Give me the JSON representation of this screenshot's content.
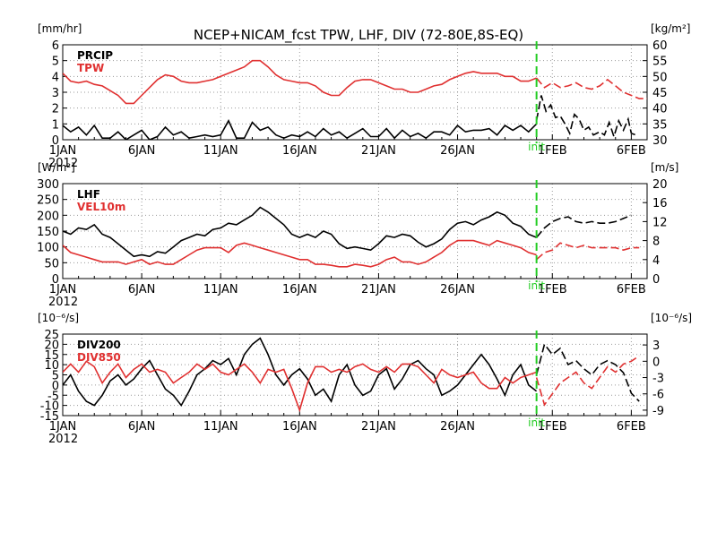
{
  "title": "NCEP+NICAM_fcst TPW, LHF, DIV (72-80E,8S-EQ)",
  "init_label": "init",
  "colors": {
    "black": "#000000",
    "red": "#e03030",
    "init": "#22cc22",
    "grid": "#9a9a9a"
  },
  "x_ticks": [
    "1JAN",
    "6JAN",
    "11JAN",
    "16JAN",
    "21JAN",
    "26JAN",
    "1FEB",
    "6FEB"
  ],
  "x_year": "2012",
  "chart_data": [
    {
      "type": "line",
      "left_unit": "[mm/hr]",
      "right_unit": "[kg/m²]",
      "left_ylim": [
        0,
        6
      ],
      "left_ticks": [
        0,
        1,
        2,
        3,
        4,
        5,
        6
      ],
      "right_ylim": [
        30,
        60
      ],
      "right_ticks": [
        30,
        35,
        40,
        45,
        50,
        55,
        60
      ],
      "x_range": [
        1,
        38
      ],
      "forecast_start": 31,
      "series": [
        {
          "name": "PRCIP",
          "axis": "left",
          "color": "black",
          "x": [
            1,
            1.5,
            2,
            2.5,
            3,
            3.5,
            4,
            4.5,
            5,
            5.5,
            6,
            6.5,
            7,
            7.5,
            8,
            8.5,
            9,
            9.5,
            10,
            10.5,
            11,
            11.5,
            12,
            12.5,
            13,
            13.5,
            14,
            14.5,
            15,
            15.5,
            16,
            16.5,
            17,
            17.5,
            18,
            18.5,
            19,
            19.5,
            20,
            20.5,
            21,
            21.5,
            22,
            22.5,
            23,
            23.5,
            24,
            24.5,
            25,
            25.5,
            26,
            26.5,
            27,
            27.5,
            28,
            28.5,
            29,
            29.5,
            30,
            30.5,
            31
          ],
          "values": [
            0.9,
            0.5,
            0.8,
            0.3,
            0.9,
            0.1,
            0.1,
            0.5,
            0.0,
            0.3,
            0.6,
            0.0,
            0.2,
            0.8,
            0.3,
            0.5,
            0.1,
            0.2,
            0.3,
            0.2,
            0.3,
            1.2,
            0.1,
            0.1,
            1.1,
            0.6,
            0.8,
            0.3,
            0.1,
            0.3,
            0.2,
            0.5,
            0.2,
            0.7,
            0.3,
            0.5,
            0.1,
            0.4,
            0.7,
            0.2,
            0.2,
            0.7,
            0.1,
            0.6,
            0.2,
            0.4,
            0.1,
            0.5,
            0.5,
            0.3,
            0.9,
            0.5,
            0.6,
            0.6,
            0.7,
            0.3,
            0.9,
            0.6,
            0.9,
            0.5,
            1.0
          ]
        },
        {
          "name": "TPW",
          "axis": "right",
          "color": "red",
          "x": [
            1,
            1.5,
            2,
            2.5,
            3,
            3.5,
            4,
            4.5,
            5,
            5.5,
            6,
            6.5,
            7,
            7.5,
            8,
            8.5,
            9,
            9.5,
            10,
            10.5,
            11,
            11.5,
            12,
            12.5,
            13,
            13.5,
            14,
            14.5,
            15,
            15.5,
            16,
            16.5,
            17,
            17.5,
            18,
            18.5,
            19,
            19.5,
            20,
            20.5,
            21,
            21.5,
            22,
            22.5,
            23,
            23.5,
            24,
            24.5,
            25,
            25.5,
            26,
            26.5,
            27,
            27.5,
            28,
            28.5,
            29,
            29.5,
            30,
            30.5,
            31
          ],
          "values": [
            51,
            48.5,
            48,
            48.5,
            47.5,
            47,
            45.5,
            44,
            41.5,
            41.5,
            44,
            46.5,
            49,
            50.5,
            50,
            48.5,
            48,
            48,
            48.5,
            49,
            50,
            51,
            52,
            53,
            55,
            55,
            53,
            50.5,
            49,
            48.5,
            48,
            48,
            47,
            45,
            44,
            44,
            46.5,
            48.5,
            49,
            49,
            48,
            47,
            46,
            46,
            45,
            45,
            46,
            47,
            47.5,
            49,
            50,
            51,
            51.5,
            51,
            51,
            51,
            50,
            50,
            48.5,
            48.5,
            49.5
          ]
        },
        {
          "name": "PRCIP forecast",
          "axis": "left",
          "color": "black",
          "dashed": true,
          "x": [
            31,
            31.3,
            31.6,
            31.9,
            32.2,
            32.5,
            32.8,
            33.1,
            33.4,
            33.7,
            34,
            34.3,
            34.6,
            35,
            35.3,
            35.6,
            35.9,
            36.2,
            36.5,
            36.8,
            37,
            37.3
          ],
          "values": [
            1.2,
            2.8,
            1.8,
            2.2,
            1.4,
            1.5,
            1.0,
            0.4,
            1.6,
            1.3,
            0.6,
            0.8,
            0.3,
            0.5,
            0.3,
            1.1,
            0.2,
            1.2,
            0.6,
            1.3,
            0.4,
            0.3
          ]
        },
        {
          "name": "TPW forecast",
          "axis": "right",
          "color": "red",
          "dashed": true,
          "x": [
            31,
            31.5,
            32,
            32.5,
            33,
            33.5,
            34,
            34.5,
            35,
            35.5,
            36,
            36.5,
            37,
            37.5,
            38
          ],
          "values": [
            49.5,
            46.5,
            48,
            46.5,
            47,
            48,
            46.5,
            46,
            47,
            49,
            47,
            45,
            44,
            43,
            43
          ]
        }
      ]
    },
    {
      "type": "line",
      "left_unit": "[W/m²]",
      "right_unit": "[m/s]",
      "left_ylim": [
        0,
        300
      ],
      "left_ticks": [
        0,
        50,
        100,
        150,
        200,
        250,
        300
      ],
      "right_ylim": [
        0,
        20
      ],
      "right_ticks": [
        0,
        4,
        8,
        12,
        16,
        20
      ],
      "x_range": [
        1,
        38
      ],
      "forecast_start": 31,
      "series": [
        {
          "name": "LHF",
          "axis": "left",
          "color": "black",
          "x": [
            1,
            1.5,
            2,
            2.5,
            3,
            3.5,
            4,
            4.5,
            5,
            5.5,
            6,
            6.5,
            7,
            7.5,
            8,
            8.5,
            9,
            9.5,
            10,
            10.5,
            11,
            11.5,
            12,
            12.5,
            13,
            13.5,
            14,
            14.5,
            15,
            15.5,
            16,
            16.5,
            17,
            17.5,
            18,
            18.5,
            19,
            19.5,
            20,
            20.5,
            21,
            21.5,
            22,
            22.5,
            23,
            23.5,
            24,
            24.5,
            25,
            25.5,
            26,
            26.5,
            27,
            27.5,
            28,
            28.5,
            29,
            29.5,
            30,
            30.5,
            31
          ],
          "values": [
            150,
            140,
            160,
            155,
            170,
            140,
            130,
            110,
            90,
            70,
            75,
            70,
            85,
            80,
            100,
            120,
            130,
            140,
            135,
            155,
            160,
            175,
            170,
            185,
            200,
            225,
            210,
            190,
            170,
            140,
            130,
            140,
            130,
            150,
            140,
            110,
            95,
            100,
            95,
            90,
            110,
            135,
            130,
            140,
            135,
            115,
            100,
            110,
            125,
            155,
            175,
            180,
            170,
            185,
            195,
            210,
            200,
            175,
            165,
            140,
            130
          ]
        },
        {
          "name": "VEL10m",
          "axis": "right",
          "color": "red",
          "x": [
            1,
            1.5,
            2,
            2.5,
            3,
            3.5,
            4,
            4.5,
            5,
            5.5,
            6,
            6.5,
            7,
            7.5,
            8,
            8.5,
            9,
            9.5,
            10,
            10.5,
            11,
            11.5,
            12,
            12.5,
            13,
            13.5,
            14,
            14.5,
            15,
            15.5,
            16,
            16.5,
            17,
            17.5,
            18,
            18.5,
            19,
            19.5,
            20,
            20.5,
            21,
            21.5,
            22,
            22.5,
            23,
            23.5,
            24,
            24.5,
            25,
            25.5,
            26,
            26.5,
            27,
            27.5,
            28,
            28.5,
            29,
            29.5,
            30,
            30.5,
            31
          ],
          "values": [
            7,
            5.5,
            5,
            4.5,
            4,
            3.5,
            3.5,
            3.5,
            3,
            3.5,
            4,
            3,
            3.5,
            3,
            3,
            4,
            5,
            6,
            6.5,
            6.5,
            6.5,
            5.5,
            7,
            7.5,
            7,
            6.5,
            6,
            5.5,
            5,
            4.5,
            4,
            4,
            3,
            3,
            2.8,
            2.5,
            2.5,
            3,
            2.8,
            2.5,
            3,
            4,
            4.5,
            3.5,
            3.5,
            3,
            3.5,
            4.5,
            5.5,
            7,
            8,
            8,
            8,
            7.5,
            7,
            8,
            7.5,
            7,
            6.5,
            5.5,
            5
          ]
        },
        {
          "name": "LHF forecast",
          "axis": "left",
          "color": "black",
          "dashed": true,
          "x": [
            31,
            31.5,
            32,
            32.5,
            33,
            33.5,
            34,
            34.5,
            35,
            35.5,
            36,
            36.5,
            37
          ],
          "values": [
            130,
            160,
            180,
            190,
            195,
            180,
            175,
            180,
            175,
            175,
            180,
            190,
            200
          ]
        },
        {
          "name": "VEL10m forecast",
          "axis": "right",
          "color": "red",
          "dashed": true,
          "x": [
            31,
            31.5,
            32,
            32.5,
            33,
            33.5,
            34,
            34.5,
            35,
            35.5,
            36,
            36.5,
            37,
            37.5
          ],
          "values": [
            4,
            5.5,
            6,
            7.5,
            7,
            6.5,
            7,
            6.5,
            6.5,
            6.5,
            6.5,
            6,
            6.5,
            6.5
          ]
        }
      ]
    },
    {
      "type": "line",
      "left_unit": "[10⁻⁶/s]",
      "right_unit": "[10⁻⁶/s]",
      "left_ylim": [
        -15,
        25
      ],
      "left_ticks": [
        -15,
        -10,
        -5,
        0,
        5,
        10,
        15,
        20,
        25
      ],
      "right_ylim": [
        -10,
        5
      ],
      "right_ticks": [
        -9,
        -6,
        -3,
        0,
        3
      ],
      "x_range": [
        1,
        38
      ],
      "forecast_start": 31,
      "series": [
        {
          "name": "DIV200",
          "axis": "left",
          "color": "black",
          "x": [
            1,
            1.5,
            2,
            2.5,
            3,
            3.5,
            4,
            4.5,
            5,
            5.5,
            6,
            6.5,
            7,
            7.5,
            8,
            8.5,
            9,
            9.5,
            10,
            10.5,
            11,
            11.5,
            12,
            12.5,
            13,
            13.5,
            14,
            14.5,
            15,
            15.5,
            16,
            16.5,
            17,
            17.5,
            18,
            18.5,
            19,
            19.5,
            20,
            20.5,
            21,
            21.5,
            22,
            22.5,
            23,
            23.5,
            24,
            24.5,
            25,
            25.5,
            26,
            26.5,
            27,
            27.5,
            28,
            28.5,
            29,
            29.5,
            30,
            30.5,
            31
          ],
          "values": [
            0,
            5,
            -3,
            -8,
            -10,
            -5,
            2,
            5,
            0,
            3,
            8,
            12,
            5,
            -2,
            -5,
            -10,
            -3,
            5,
            8,
            12,
            10,
            13,
            5,
            15,
            20,
            23,
            15,
            5,
            0,
            5,
            8,
            3,
            -5,
            -2,
            -8,
            5,
            10,
            0,
            -5,
            -3,
            5,
            8,
            -2,
            3,
            10,
            12,
            8,
            5,
            -5,
            -3,
            0,
            5,
            10,
            15,
            10,
            3,
            -5,
            5,
            10,
            0,
            -3
          ]
        },
        {
          "name": "DIV850",
          "axis": "right",
          "color": "red",
          "x": [
            1,
            1.5,
            2,
            2.5,
            3,
            3.5,
            4,
            4.5,
            5,
            5.5,
            6,
            6.5,
            7,
            7.5,
            8,
            8.5,
            9,
            9.5,
            10,
            10.5,
            11,
            11.5,
            12,
            12.5,
            13,
            13.5,
            14,
            14.5,
            15,
            15.5,
            16,
            16.5,
            17,
            17.5,
            18,
            18.5,
            19,
            19.5,
            20,
            20.5,
            21,
            21.5,
            22,
            22.5,
            23,
            23.5,
            24,
            24.5,
            25,
            25.5,
            26,
            26.5,
            27,
            27.5,
            28,
            28.5,
            29,
            29.5,
            30,
            30.5,
            31
          ],
          "values": [
            -2,
            -0.5,
            -2,
            0,
            -1,
            -4,
            -2,
            -0.5,
            -3,
            -1.5,
            -0.5,
            -2,
            -1.5,
            -2,
            -4,
            -3,
            -2,
            -0.5,
            -1.5,
            -0.5,
            -2,
            -2.5,
            -1.5,
            -0.5,
            -2,
            -4,
            -1.5,
            -2,
            -1.5,
            -5,
            -9,
            -4,
            -1,
            -1,
            -2,
            -1.5,
            -2,
            -1,
            -0.5,
            -1.5,
            -2,
            -1,
            -2,
            -0.5,
            -0.5,
            -1,
            -2.5,
            -4,
            -1.5,
            -2.5,
            -3,
            -2.5,
            -2,
            -4,
            -5,
            -5,
            -3,
            -4,
            -3,
            -2.5,
            -2
          ]
        },
        {
          "name": "DIV200 forecast",
          "axis": "left",
          "color": "black",
          "dashed": true,
          "x": [
            31,
            31.5,
            32,
            32.5,
            33,
            33.5,
            34,
            34.5,
            35,
            35.5,
            36,
            36.5,
            37,
            37.5
          ],
          "values": [
            5,
            20,
            15,
            18,
            10,
            12,
            8,
            5,
            10,
            12,
            10,
            6,
            -4,
            -8
          ]
        },
        {
          "name": "DIV850 forecast",
          "axis": "right",
          "color": "red",
          "dashed": true,
          "x": [
            31,
            31.5,
            32,
            32.5,
            33,
            33.5,
            34,
            34.5,
            35,
            35.5,
            36,
            36.5,
            37,
            37.5
          ],
          "values": [
            -3,
            -8,
            -6,
            -4,
            -3,
            -2,
            -4,
            -5,
            -3,
            -1,
            -2,
            -0.5,
            0,
            1
          ]
        }
      ]
    }
  ]
}
